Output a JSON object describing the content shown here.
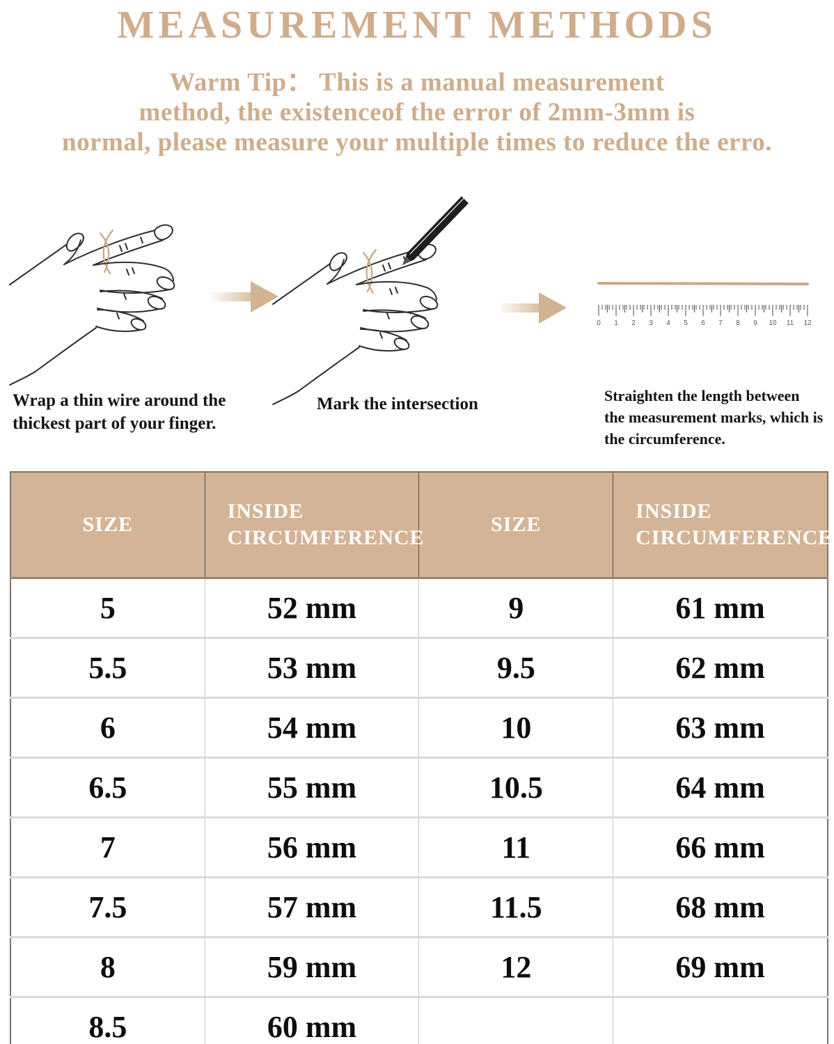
{
  "title": "MEASUREMENT METHODS",
  "warm_tip": "Warm Tip：  This is a manual measurement\nmethod, the existenceof the error of 2mm-3mm is\nnormal, please measure your multiple times to reduce the erro.",
  "colors": {
    "accent_tan": "#cfad8c",
    "table_header_bg": "#d3b496",
    "wire_tan": "#c8a781",
    "arrow_tan": "#d2b492",
    "text_black": "#151515"
  },
  "steps": [
    {
      "illustration": "hand-with-wire",
      "caption": "Wrap a thin wire around the\nthickest part of your finger."
    },
    {
      "illustration": "hand-with-pen",
      "caption": "Mark the intersection"
    },
    {
      "illustration": "wire-and-ruler",
      "caption": "Straighten the length between\nthe measurement marks, which is\nthe circumference."
    }
  ],
  "ruler": {
    "numbers": [
      "0",
      "1",
      "2",
      "3",
      "4",
      "5",
      "6",
      "7",
      "8",
      "9",
      "10",
      "11",
      "12"
    ]
  },
  "size_table": {
    "headers": [
      "SIZE",
      "INSIDE CIRCUMFERENCE",
      "SIZE",
      "INSIDE CIRCUMFERENCE"
    ],
    "rows": [
      [
        "5",
        "52 mm",
        "9",
        "61 mm"
      ],
      [
        "5.5",
        "53 mm",
        "9.5",
        "62 mm"
      ],
      [
        "6",
        "54 mm",
        "10",
        "63 mm"
      ],
      [
        "6.5",
        "55 mm",
        "10.5",
        "64 mm"
      ],
      [
        "7",
        "56 mm",
        "11",
        "66 mm"
      ],
      [
        "7.5",
        "57 mm",
        "11.5",
        "68 mm"
      ],
      [
        "8",
        "59 mm",
        "12",
        "69 mm"
      ],
      [
        "8.5",
        "60 mm",
        "",
        ""
      ]
    ]
  }
}
